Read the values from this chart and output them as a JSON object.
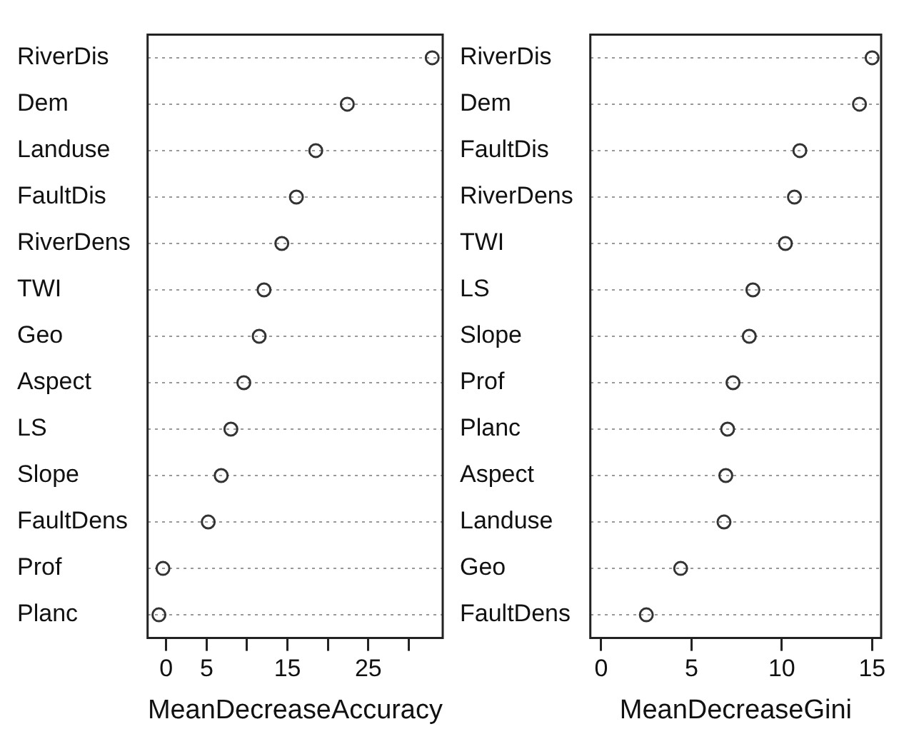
{
  "chart_data": [
    {
      "type": "scatter",
      "orientation": "horizontal",
      "xlabel": "MeanDecreaseAccuracy",
      "categories": [
        "RiverDis",
        "Dem",
        "Landuse",
        "FaultDis",
        "RiverDens",
        "TWI",
        "Geo",
        "Aspect",
        "LS",
        "Slope",
        "FaultDens",
        "Prof",
        "Planc"
      ],
      "values": [
        32.9,
        22.4,
        18.5,
        16.1,
        14.3,
        12.1,
        11.5,
        9.6,
        8.0,
        6.8,
        5.2,
        -0.4,
        -0.9
      ],
      "color": "#333333",
      "marker": "circle",
      "grid": "y",
      "xlim": [
        -2.3,
        34.2
      ],
      "xticks": [
        0,
        5,
        {
          "value": 10,
          "label": null
        },
        15,
        {
          "value": 20,
          "label": null
        },
        25,
        {
          "value": 30,
          "label": null
        }
      ]
    },
    {
      "type": "scatter",
      "orientation": "horizontal",
      "xlabel": "MeanDecreaseGini",
      "categories": [
        "RiverDis",
        "Dem",
        "FaultDis",
        "RiverDens",
        "TWI",
        "LS",
        "Slope",
        "Prof",
        "Planc",
        "Aspect",
        "Landuse",
        "Geo",
        "FaultDens"
      ],
      "values": [
        15.0,
        14.3,
        11.0,
        10.7,
        10.2,
        8.4,
        8.2,
        7.3,
        7.0,
        6.9,
        6.8,
        4.4,
        2.5
      ],
      "color": "#333333",
      "marker": "circle",
      "grid": "y",
      "xlim": [
        -0.6,
        15.5
      ],
      "xticks": [
        0,
        5,
        10,
        15
      ]
    }
  ]
}
